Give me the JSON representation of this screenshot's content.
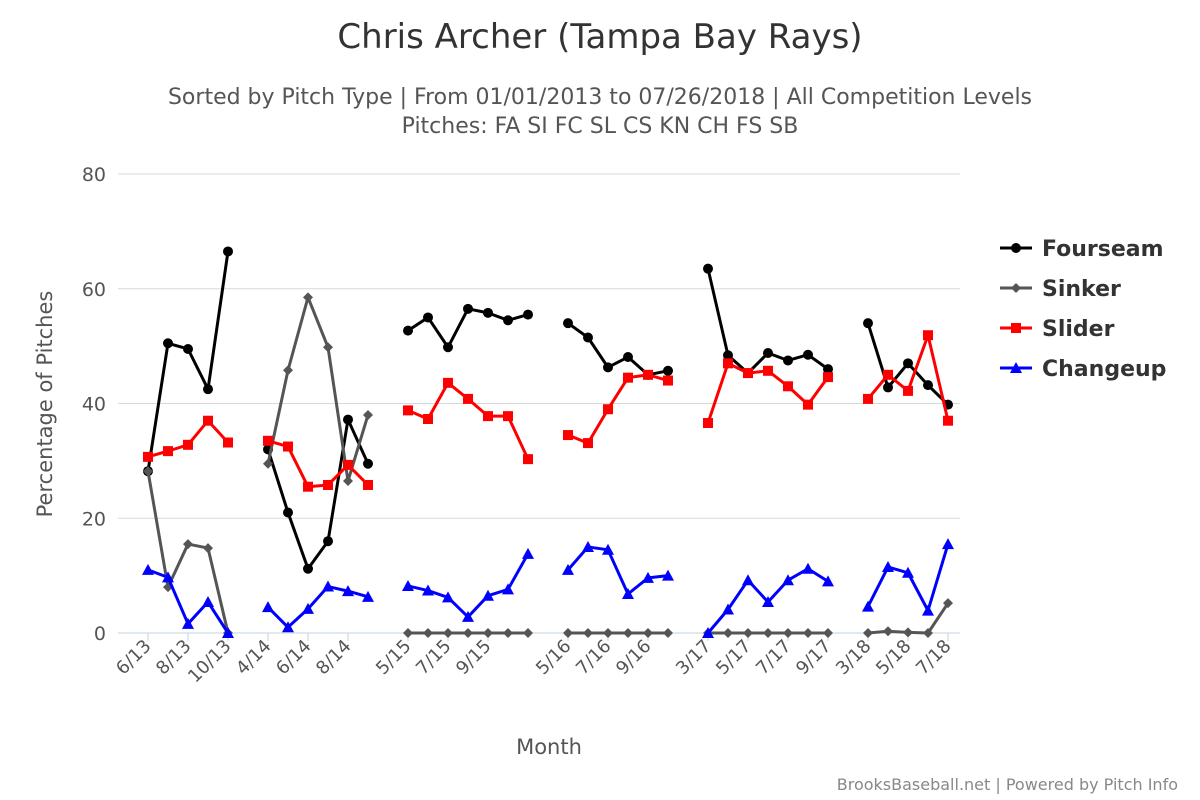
{
  "chart_data": {
    "type": "line",
    "title": "Chris Archer (Tampa Bay Rays)",
    "subtitle_line1": "Sorted by Pitch Type | From 01/01/2013 to 07/26/2018 | All Competition Levels",
    "subtitle_line2": "Pitches: FA SI FC SL CS KN CH FS SB",
    "xlabel": "Month",
    "ylabel": "Percentage of Pitches",
    "ylim": [
      0,
      80
    ],
    "yticks": [
      0,
      20,
      40,
      60,
      80
    ],
    "grid": true,
    "legend_position": "right",
    "credits": "BrooksBaseball.net | Powered by Pitch Info",
    "x_tick_labels": [
      {
        "index": 0,
        "label": "6/13"
      },
      {
        "index": 2,
        "label": "8/13"
      },
      {
        "index": 4,
        "label": "10/13"
      },
      {
        "index": 6,
        "label": "4/14"
      },
      {
        "index": 8,
        "label": "6/14"
      },
      {
        "index": 10,
        "label": "8/14"
      },
      {
        "index": 13,
        "label": "5/15"
      },
      {
        "index": 15,
        "label": "7/15"
      },
      {
        "index": 17,
        "label": "9/15"
      },
      {
        "index": 21,
        "label": "5/16"
      },
      {
        "index": 23,
        "label": "7/16"
      },
      {
        "index": 25,
        "label": "9/16"
      },
      {
        "index": 28,
        "label": "3/17"
      },
      {
        "index": 30,
        "label": "5/17"
      },
      {
        "index": 32,
        "label": "7/17"
      },
      {
        "index": 34,
        "label": "9/17"
      },
      {
        "index": 36,
        "label": "3/18"
      },
      {
        "index": 38,
        "label": "5/18"
      },
      {
        "index": 40,
        "label": "7/18"
      }
    ],
    "series": [
      {
        "name": "Fourseam",
        "color": "#000000",
        "marker": "circle",
        "segments": [
          {
            "start": 0,
            "values": [
              28.2,
              50.5,
              49.5,
              42.5,
              66.5
            ]
          },
          {
            "start": 6,
            "values": [
              32.0,
              21.0,
              11.2,
              16.0,
              37.2,
              29.5
            ]
          },
          {
            "start": 13,
            "values": [
              52.7,
              55.0,
              49.8,
              56.5,
              55.8,
              54.5,
              55.5
            ]
          },
          {
            "start": 21,
            "values": [
              54.0,
              51.5,
              46.3,
              48.1,
              45.0,
              45.7
            ]
          },
          {
            "start": 28,
            "values": [
              63.5,
              48.4,
              45.3,
              48.8,
              47.5,
              48.5,
              46.0
            ]
          },
          {
            "start": 36,
            "values": [
              54.0,
              42.8,
              47.0,
              43.2,
              39.8
            ]
          }
        ]
      },
      {
        "name": "Sinker",
        "color": "#555555",
        "marker": "diamond",
        "segments": [
          {
            "start": 0,
            "values": [
              28.2,
              8.0,
              15.5,
              14.8,
              0.0
            ]
          },
          {
            "start": 6,
            "values": [
              29.5,
              45.8,
              58.5,
              49.8,
              26.5,
              38.0
            ]
          },
          {
            "start": 13,
            "values": [
              0.0,
              0.0,
              0.0,
              0.0,
              0.0,
              0.0,
              0.0
            ]
          },
          {
            "start": 21,
            "values": [
              0.0,
              0.0,
              0.0,
              0.0,
              0.0,
              0.0
            ]
          },
          {
            "start": 28,
            "values": [
              0.0,
              0.0,
              0.0,
              0.0,
              0.0,
              0.0,
              0.0
            ]
          },
          {
            "start": 36,
            "values": [
              0.0,
              0.3,
              0.1,
              0.0,
              5.2
            ]
          }
        ]
      },
      {
        "name": "Slider",
        "color": "#ff0000",
        "marker": "square",
        "segments": [
          {
            "start": 0,
            "values": [
              30.7,
              31.7,
              32.8,
              37.0,
              33.2
            ]
          },
          {
            "start": 6,
            "values": [
              33.5,
              32.5,
              25.5,
              25.8,
              29.3,
              25.8
            ]
          },
          {
            "start": 13,
            "values": [
              38.8,
              37.3,
              43.6,
              40.8,
              37.8,
              37.8,
              30.3
            ]
          },
          {
            "start": 21,
            "values": [
              34.5,
              33.1,
              39.0,
              44.5,
              45.0,
              44.0
            ]
          },
          {
            "start": 28,
            "values": [
              36.6,
              47.0,
              45.3,
              45.7,
              43.0,
              39.8,
              44.6
            ]
          },
          {
            "start": 36,
            "values": [
              40.8,
              45.0,
              42.2,
              51.9,
              37.0
            ]
          }
        ]
      },
      {
        "name": "Changeup",
        "color": "#0000ff",
        "marker": "triangle",
        "segments": [
          {
            "start": 0,
            "values": [
              11.0,
              9.7,
              1.6,
              5.4,
              0.0
            ]
          },
          {
            "start": 6,
            "values": [
              4.5,
              1.0,
              4.2,
              8.1,
              7.3,
              6.3
            ]
          },
          {
            "start": 13,
            "values": [
              8.2,
              7.4,
              6.2,
              2.8,
              6.5,
              7.6,
              13.8
            ]
          },
          {
            "start": 21,
            "values": [
              11.0,
              15.0,
              14.5,
              6.8,
              9.6,
              10.0
            ]
          },
          {
            "start": 28,
            "values": [
              0.0,
              4.1,
              9.2,
              5.4,
              9.2,
              11.2,
              9.0
            ]
          },
          {
            "start": 36,
            "values": [
              4.6,
              11.5,
              10.5,
              3.9,
              15.5
            ]
          }
        ]
      }
    ]
  }
}
